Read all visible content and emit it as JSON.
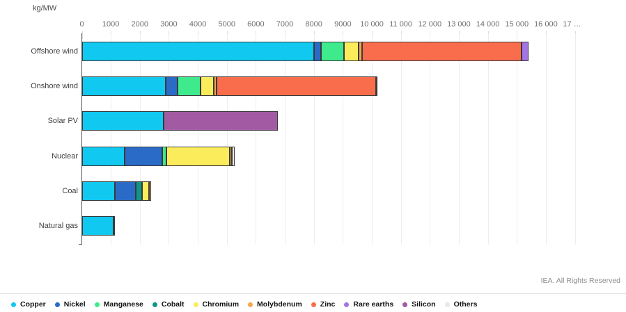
{
  "chart_data": {
    "type": "bar",
    "orientation": "horizontal",
    "stacked": true,
    "unit_label": "kg/MW",
    "title": "",
    "categories": [
      "Offshore wind",
      "Onshore wind",
      "Solar PV",
      "Nuclear",
      "Coal",
      "Natural gas"
    ],
    "series": [
      {
        "name": "Copper",
        "color": "#10C8F0",
        "values": [
          8000,
          2900,
          2822,
          1473,
          1150,
          1100
        ]
      },
      {
        "name": "Nickel",
        "color": "#2B6BC8",
        "values": [
          240,
          404,
          0,
          1297,
          721,
          0
        ]
      },
      {
        "name": "Manganese",
        "color": "#3EEA8C",
        "values": [
          790,
          780,
          0,
          148,
          0,
          0
        ]
      },
      {
        "name": "Cobalt",
        "color": "#0F9688",
        "values": [
          0,
          0,
          0,
          0,
          201,
          0
        ]
      },
      {
        "name": "Chromium",
        "color": "#FBEC5B",
        "values": [
          525,
          470,
          0,
          2190,
          254,
          48
        ]
      },
      {
        "name": "Molybdenum",
        "color": "#F7A64E",
        "values": [
          109,
          99,
          0,
          70,
          66,
          0
        ]
      },
      {
        "name": "Zinc",
        "color": "#FA6D4C",
        "values": [
          5500,
          5500,
          0,
          0,
          0,
          0
        ]
      },
      {
        "name": "Rare earths",
        "color": "#A276E3",
        "values": [
          239,
          14,
          0,
          0,
          0,
          0
        ]
      },
      {
        "name": "Silicon",
        "color": "#A25BA2",
        "values": [
          0,
          0,
          3948,
          0,
          0,
          0
        ]
      },
      {
        "name": "Others",
        "color": "#E8E8E5",
        "values": [
          0,
          0,
          0,
          100,
          0,
          0
        ]
      }
    ],
    "xlim": [
      0,
      17000
    ],
    "x_tick_values": [
      0,
      1000,
      2000,
      3000,
      4000,
      5000,
      6000,
      7000,
      8000,
      9000,
      10000,
      11000,
      12000,
      13000,
      14000,
      15000,
      16000,
      17000
    ],
    "x_tick_labels": [
      "0",
      "1000",
      "2000",
      "3000",
      "4000",
      "5000",
      "6000",
      "7000",
      "8000",
      "9000",
      "10 000",
      "11 000",
      "12 000",
      "13 000",
      "14 000",
      "15 000",
      "16 000",
      "17 …"
    ],
    "grid": true,
    "legend_position": "bottom"
  },
  "footer": {
    "copyright": "IEA. All Rights Reserved"
  }
}
